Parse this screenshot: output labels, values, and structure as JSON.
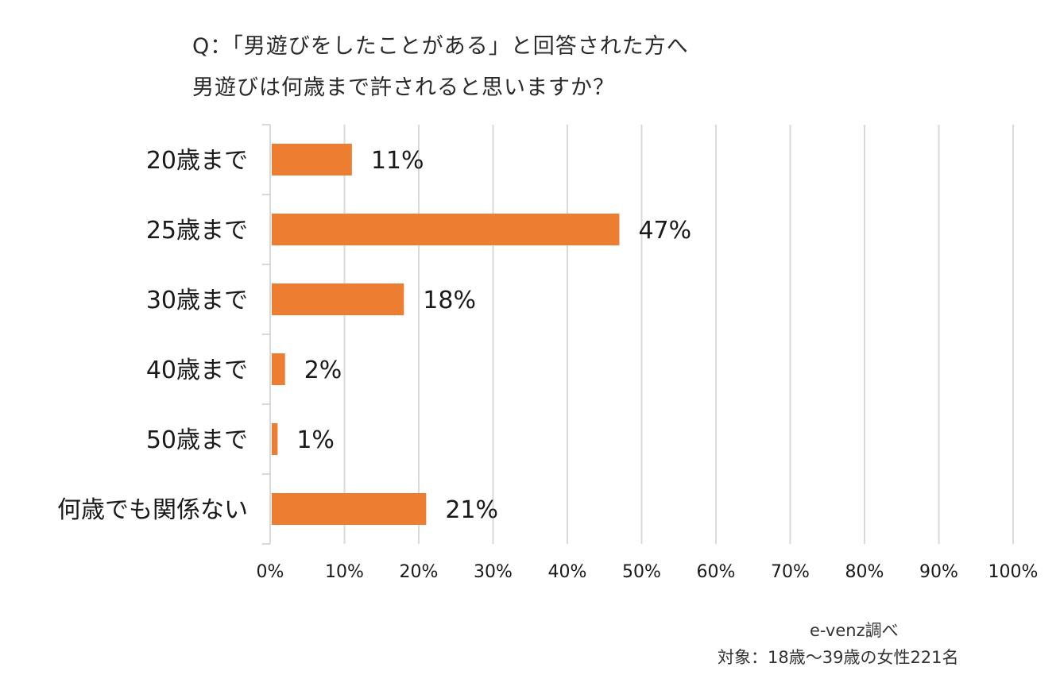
{
  "chart_data": {
    "type": "bar",
    "orientation": "horizontal",
    "title": [
      "Q：「男遊びをしたことがある」と回答された方へ",
      "男遊びは何歳まで許されると思いますか？"
    ],
    "categories": [
      "20歳まで",
      "25歳まで",
      "30歳まで",
      "40歳まで",
      "50歳まで",
      "何歳でも関係ない"
    ],
    "values": [
      11,
      47,
      18,
      2,
      1,
      21
    ],
    "data_labels": [
      "11%",
      "47%",
      "18%",
      "2%",
      "1%",
      "21%"
    ],
    "x_ticks": [
      "0%",
      "10%",
      "20%",
      "30%",
      "40%",
      "50%",
      "60%",
      "70%",
      "80%",
      "90%",
      "100%"
    ],
    "xlim": [
      0,
      100
    ],
    "xlabel": "",
    "ylabel": "",
    "grid": true,
    "legend": "none",
    "bar_color": "#ED7D31",
    "grid_color": "#D9D9D9",
    "source": "e-venz調べ",
    "sample": "対象：18歳〜39歳の女性221名"
  }
}
